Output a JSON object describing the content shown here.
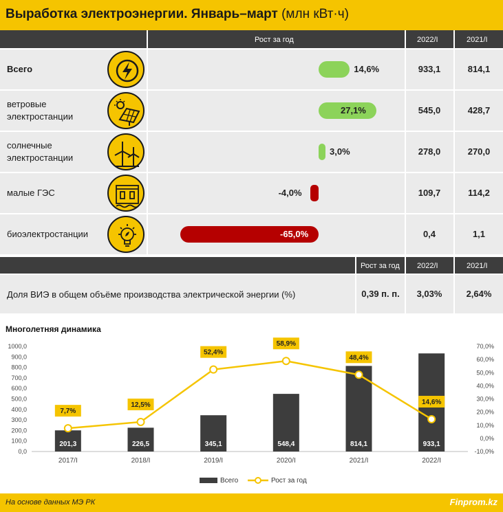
{
  "header": {
    "title_bold": "Выработка электроэнергии. Январь–март",
    "title_unit": "(млн кВт·ч)"
  },
  "table1": {
    "col_growth": "Рост за год",
    "col_2022": "2022/I",
    "col_2021": "2021/I",
    "rows": [
      {
        "label": "Всего",
        "growth": 14.6,
        "growth_label": "14,6%",
        "v2022": "933,1",
        "v2021": "814,1",
        "icon": "lightning-icon"
      },
      {
        "label": "ветровые электростанции",
        "growth": 27.1,
        "growth_label": "27,1%",
        "v2022": "545,0",
        "v2021": "428,7",
        "icon": "solar-panel-icon"
      },
      {
        "label": "солнечные электростанции",
        "growth": 3.0,
        "growth_label": "3,0%",
        "v2022": "278,0",
        "v2021": "270,0",
        "icon": "wind-turbine-icon"
      },
      {
        "label": "малые ГЭС",
        "growth": -4.0,
        "growth_label": "-4,0%",
        "v2022": "109,7",
        "v2021": "114,2",
        "icon": "hydro-dam-icon"
      },
      {
        "label": "биоэлектростанции",
        "growth": -65.0,
        "growth_label": "-65,0%",
        "v2022": "0,4",
        "v2021": "1,1",
        "icon": "eco-bulb-icon"
      }
    ],
    "colors": {
      "positive": "#8cd35a",
      "negative": "#b50000"
    }
  },
  "table2": {
    "col_growth": "Рост за год",
    "col_2022": "2022/I",
    "col_2021": "2021/I",
    "label": "Доля ВИЭ в общем объёме производства электрической энергии (%)",
    "growth": "0,39 п. п.",
    "v2022": "3,03%",
    "v2021": "2,64%"
  },
  "chart_title": "Многолетняя динамика",
  "chart_data": {
    "type": "bar",
    "categories": [
      "2017/I",
      "2018/I",
      "2019/I",
      "2020/I",
      "2021/I",
      "2022/I"
    ],
    "series": [
      {
        "name": "Всего",
        "kind": "bar",
        "values": [
          201.3,
          226.5,
          345.1,
          548.4,
          814.1,
          933.1
        ],
        "labels": [
          "201,3",
          "226,5",
          "345,1",
          "548,4",
          "814,1",
          "933,1"
        ],
        "color": "#3d3d3d"
      },
      {
        "name": "Рост за год",
        "kind": "line",
        "axis": "right",
        "values": [
          7.7,
          12.5,
          52.4,
          58.9,
          48.4,
          14.6
        ],
        "labels": [
          "7,7%",
          "12,5%",
          "52,4%",
          "58,9%",
          "48,4%",
          "14,6%"
        ],
        "color": "#f5c400"
      }
    ],
    "ylim_left": [
      0,
      1000
    ],
    "yticks_left": [
      "0,0",
      "100,0",
      "200,0",
      "300,0",
      "400,0",
      "500,0",
      "600,0",
      "700,0",
      "800,0",
      "900,0",
      "1000,0"
    ],
    "ylim_right": [
      -10,
      70
    ],
    "yticks_right": [
      "-10,0%",
      "0,0%",
      "10,0%",
      "20,0%",
      "30,0%",
      "40,0%",
      "50,0%",
      "60,0%",
      "70,0%"
    ],
    "legend": "bottom"
  },
  "footer": {
    "source": "На основе данных МЭ РК",
    "brand": "Finprom.kz"
  }
}
